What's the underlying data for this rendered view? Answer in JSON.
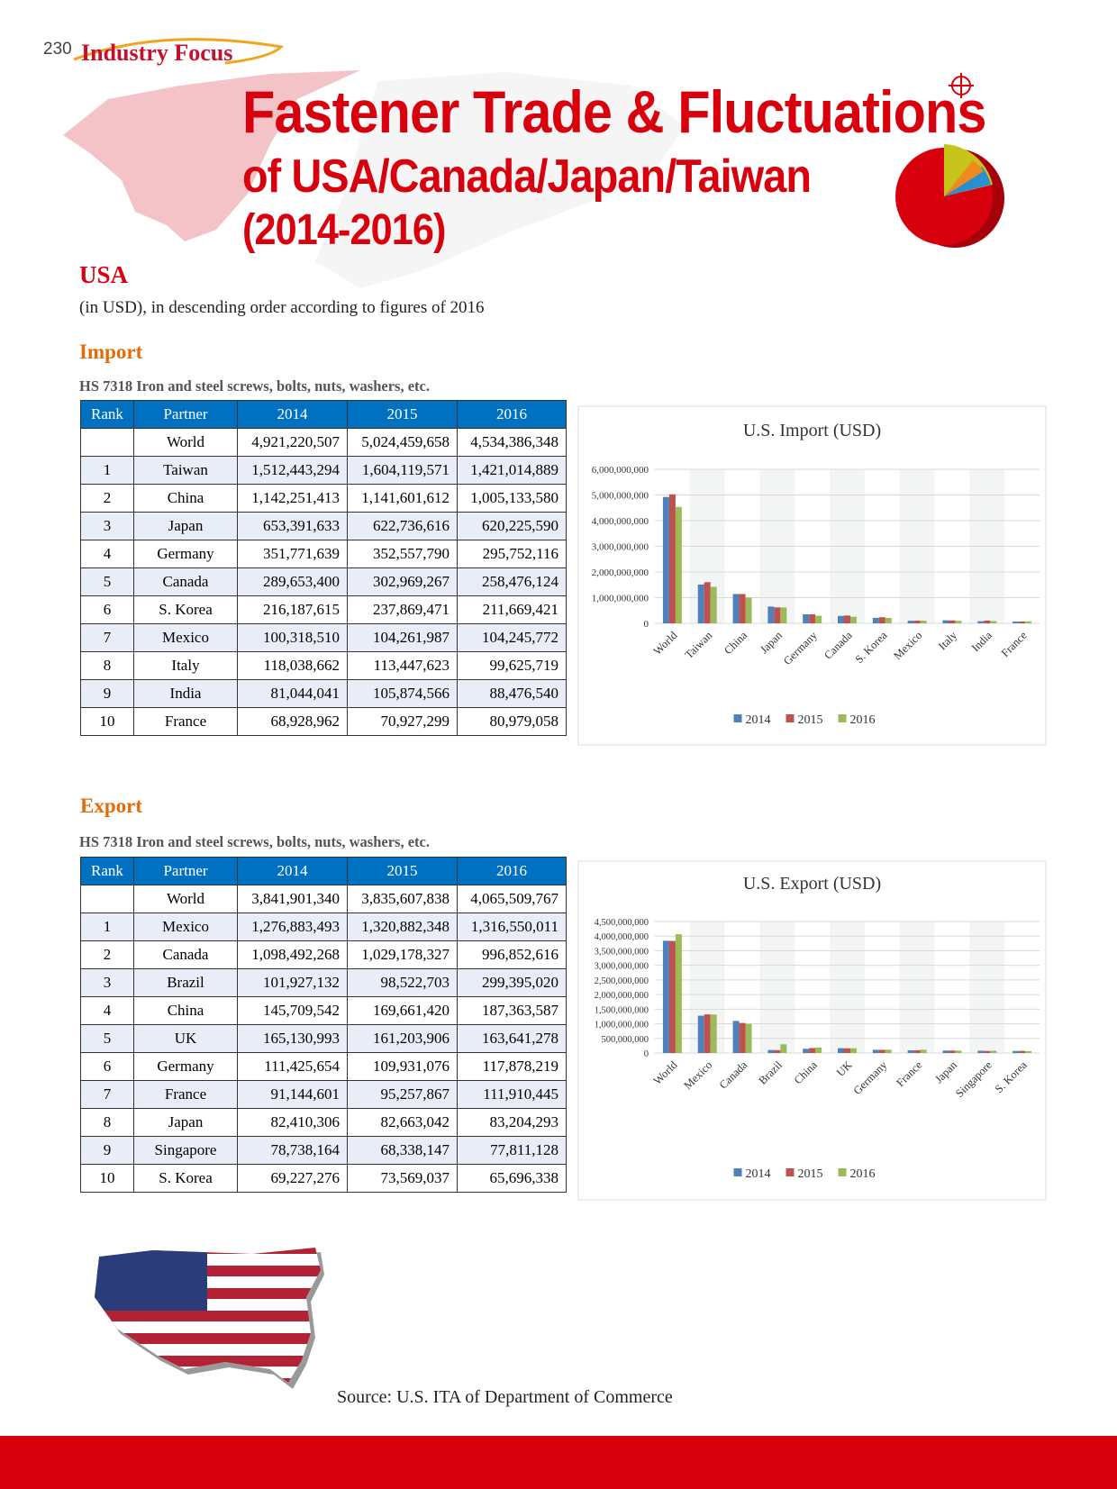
{
  "header": {
    "page_number": "230",
    "section": "Industry Focus",
    "title_line1": "Fastener Trade & Fluctuations",
    "title_line2": "of USA/Canada/Japan/Taiwan",
    "title_line3": "(2014-2016)"
  },
  "country": "USA",
  "note": "(in USD), in descending order according to figures of 2016",
  "import": {
    "heading": "Import",
    "caption": "HS 7318 Iron and steel screws, bolts, nuts, washers, etc.",
    "table": {
      "columns": [
        "Rank",
        "Partner",
        "2014",
        "2015",
        "2016"
      ],
      "rows": [
        {
          "partner": "World",
          "values": [
            "4,921,220,507",
            "5,024,459,658",
            "4,534,386,348"
          ]
        },
        {
          "rank": "1",
          "partner": "Taiwan",
          "values": [
            "1,512,443,294",
            "1,604,119,571",
            "1,421,014,889"
          ]
        },
        {
          "rank": "2",
          "partner": "China",
          "values": [
            "1,142,251,413",
            "1,141,601,612",
            "1,005,133,580"
          ]
        },
        {
          "rank": "3",
          "partner": "Japan",
          "values": [
            "653,391,633",
            "622,736,616",
            "620,225,590"
          ]
        },
        {
          "rank": "4",
          "partner": "Germany",
          "values": [
            "351,771,639",
            "352,557,790",
            "295,752,116"
          ]
        },
        {
          "rank": "5",
          "partner": "Canada",
          "values": [
            "289,653,400",
            "302,969,267",
            "258,476,124"
          ]
        },
        {
          "rank": "6",
          "partner": "S. Korea",
          "values": [
            "216,187,615",
            "237,869,471",
            "211,669,421"
          ]
        },
        {
          "rank": "7",
          "partner": "Mexico",
          "values": [
            "100,318,510",
            "104,261,987",
            "104,245,772"
          ]
        },
        {
          "rank": "8",
          "partner": "Italy",
          "values": [
            "118,038,662",
            "113,447,623",
            "99,625,719"
          ]
        },
        {
          "rank": "9",
          "partner": "India",
          "values": [
            "81,044,041",
            "105,874,566",
            "88,476,540"
          ]
        },
        {
          "rank": "10",
          "partner": "France",
          "values": [
            "68,928,962",
            "70,927,299",
            "80,979,058"
          ]
        }
      ]
    }
  },
  "export": {
    "heading": "Export",
    "caption": "HS 7318 Iron and steel screws, bolts, nuts, washers, etc.",
    "table": {
      "columns": [
        "Rank",
        "Partner",
        "2014",
        "2015",
        "2016"
      ],
      "rows": [
        {
          "partner": "World",
          "values": [
            "3,841,901,340",
            "3,835,607,838",
            "4,065,509,767"
          ]
        },
        {
          "rank": "1",
          "partner": "Mexico",
          "values": [
            "1,276,883,493",
            "1,320,882,348",
            "1,316,550,011"
          ]
        },
        {
          "rank": "2",
          "partner": "Canada",
          "values": [
            "1,098,492,268",
            "1,029,178,327",
            "996,852,616"
          ]
        },
        {
          "rank": "3",
          "partner": "Brazil",
          "values": [
            "101,927,132",
            "98,522,703",
            "299,395,020"
          ]
        },
        {
          "rank": "4",
          "partner": "China",
          "values": [
            "145,709,542",
            "169,661,420",
            "187,363,587"
          ]
        },
        {
          "rank": "5",
          "partner": "UK",
          "values": [
            "165,130,993",
            "161,203,906",
            "163,641,278"
          ]
        },
        {
          "rank": "6",
          "partner": "Germany",
          "values": [
            "111,425,654",
            "109,931,076",
            "117,878,219"
          ]
        },
        {
          "rank": "7",
          "partner": "France",
          "values": [
            "91,144,601",
            "95,257,867",
            "111,910,445"
          ]
        },
        {
          "rank": "8",
          "partner": "Japan",
          "values": [
            "82,410,306",
            "82,663,042",
            "83,204,293"
          ]
        },
        {
          "rank": "9",
          "partner": "Singapore",
          "values": [
            "78,738,164",
            "68,338,147",
            "77,811,128"
          ]
        },
        {
          "rank": "10",
          "partner": "S. Korea",
          "values": [
            "69,227,276",
            "73,569,037",
            "65,696,338"
          ]
        }
      ]
    }
  },
  "chart_data": [
    {
      "type": "bar",
      "title": "U.S. Import (USD)",
      "categories": [
        "World",
        "Taiwan",
        "China",
        "Japan",
        "Germany",
        "Canada",
        "S. Korea",
        "Mexico",
        "Italy",
        "India",
        "France"
      ],
      "series": [
        {
          "name": "2014",
          "color": "#4f81bd",
          "values": [
            4921220507,
            1512443294,
            1142251413,
            653391633,
            351771639,
            289653400,
            216187615,
            100318510,
            118038662,
            81044041,
            68928962
          ]
        },
        {
          "name": "2015",
          "color": "#c0504d",
          "values": [
            5024459658,
            1604119571,
            1141601612,
            622736616,
            352557790,
            302969267,
            237869471,
            104261987,
            113447623,
            105874566,
            70927299
          ]
        },
        {
          "name": "2016",
          "color": "#9bbb59",
          "values": [
            4534386348,
            1421014889,
            1005133580,
            620225590,
            295752116,
            258476124,
            211669421,
            104245772,
            99625719,
            88476540,
            80979058
          ]
        }
      ],
      "ylim": [
        0,
        6000000000
      ],
      "yticks": [
        0,
        {
          "value": 1000000000,
          "label": "1,000,000,000"
        },
        {
          "value": 2000000000,
          "label": "2,000,000,000"
        },
        {
          "value": 3000000000,
          "label": "3,000,000,000"
        },
        {
          "value": 4000000000,
          "label": "4,000,000,000"
        },
        {
          "value": 5000000000,
          "label": "5,000,000,000"
        },
        {
          "value": 6000000000,
          "label": "6,000,000,000"
        }
      ],
      "grid": true,
      "legend": "bottom"
    },
    {
      "type": "bar",
      "title": "U.S. Export (USD)",
      "categories": [
        "World",
        "Mexico",
        "Canada",
        "Brazil",
        "China",
        "UK",
        "Germany",
        "France",
        "Japan",
        "Singapore",
        "S. Korea"
      ],
      "series": [
        {
          "name": "2014",
          "color": "#4f81bd",
          "values": [
            3841901340,
            1276883493,
            1098492268,
            101927132,
            145709542,
            165130993,
            111425654,
            91144601,
            82410306,
            78738164,
            69227276
          ]
        },
        {
          "name": "2015",
          "color": "#c0504d",
          "values": [
            3835607838,
            1320882348,
            1029178327,
            98522703,
            169661420,
            161203906,
            109931076,
            95257867,
            82663042,
            68338147,
            73569037
          ]
        },
        {
          "name": "2016",
          "color": "#9bbb59",
          "values": [
            4065509767,
            1316550011,
            996852616,
            299395020,
            187363587,
            163641278,
            117878219,
            111910445,
            83204293,
            77811128,
            65696338
          ]
        }
      ],
      "ylim": [
        0,
        4500000000
      ],
      "yticks": [
        0,
        {
          "value": 500000000,
          "label": "500,000,000"
        },
        {
          "value": 1000000000,
          "label": "1,000,000,000"
        },
        {
          "value": 1500000000,
          "label": "1,500,000,000"
        },
        {
          "value": 2000000000,
          "label": "2,000,000,000"
        },
        {
          "value": 2500000000,
          "label": "2,500,000,000"
        },
        {
          "value": 3000000000,
          "label": "3,000,000,000"
        },
        {
          "value": 3500000000,
          "label": "3,500,000,000"
        },
        {
          "value": 4000000000,
          "label": "4,000,000,000"
        },
        {
          "value": 4500000000,
          "label": "4,500,000,000"
        }
      ],
      "grid": true,
      "legend": "bottom"
    }
  ],
  "source": "Source: U.S. ITA of Department of Commerce"
}
